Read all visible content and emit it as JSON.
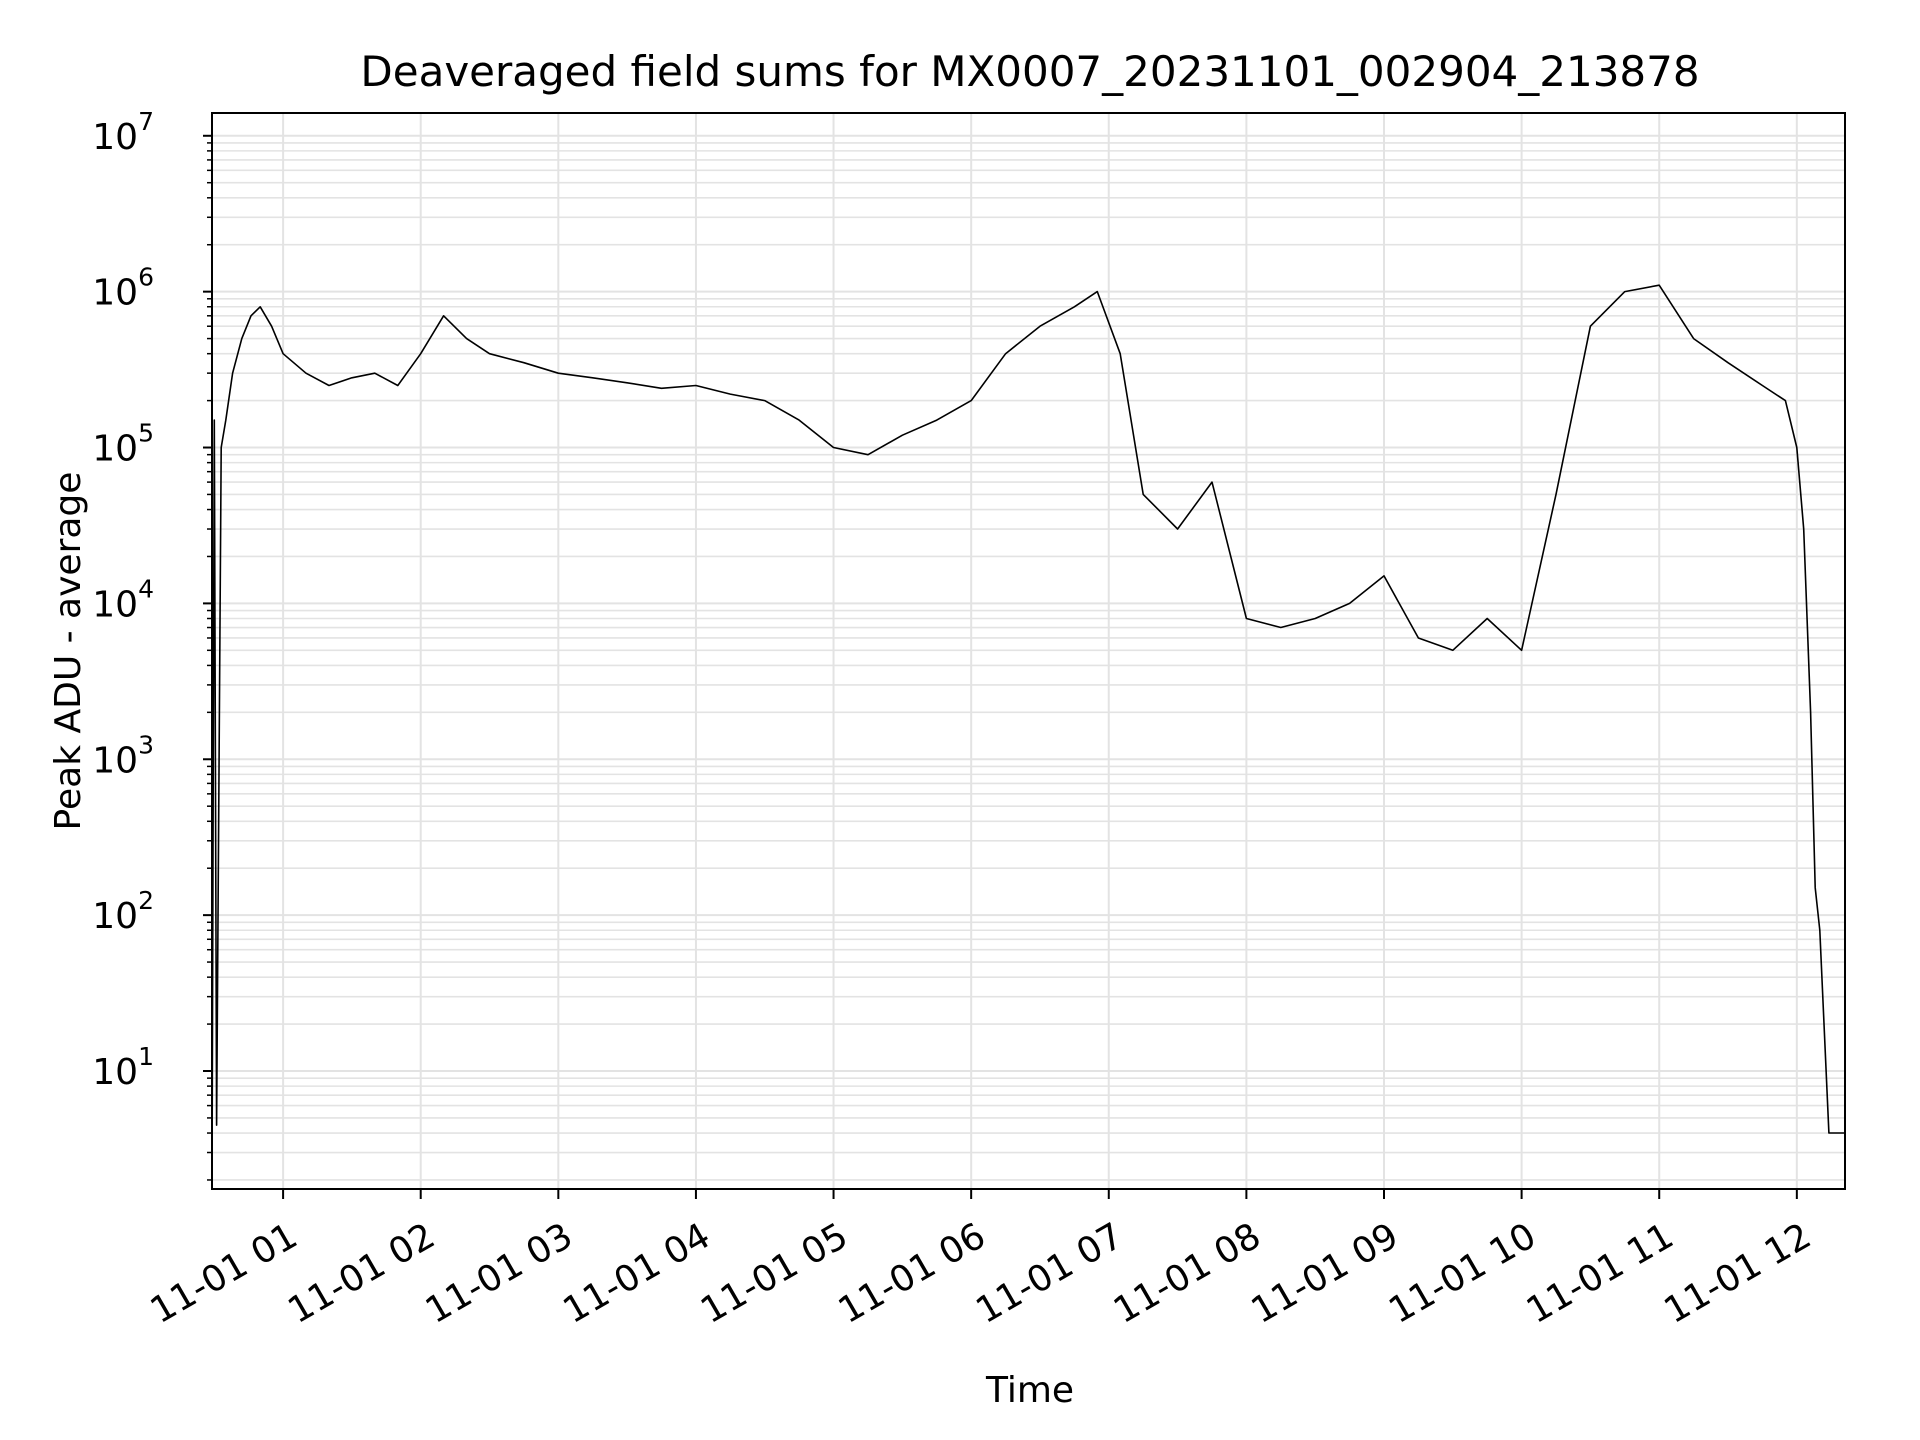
{
  "chart_data": {
    "type": "line",
    "title": "Deaveraged field sums for MX0007_20231101_002904_213878",
    "xlabel": "Time",
    "ylabel": "Peak ADU - average",
    "yscale": "log",
    "ylim": [
      1.75,
      14000000
    ],
    "xlim": [
      "2023-11-01 00:29",
      "2023-11-01 12:21"
    ],
    "grid": true,
    "line_color": "#000000",
    "grid_color": "#e3e3e3",
    "x_ticks": [
      "11-01 01",
      "11-01 02",
      "11-01 03",
      "11-01 04",
      "11-01 05",
      "11-01 06",
      "11-01 07",
      "11-01 08",
      "11-01 09",
      "11-01 10",
      "11-01 11",
      "11-01 12"
    ],
    "y_ticks": [
      {
        "base": "10",
        "exp": "1"
      },
      {
        "base": "10",
        "exp": "2"
      },
      {
        "base": "10",
        "exp": "3"
      },
      {
        "base": "10",
        "exp": "4"
      },
      {
        "base": "10",
        "exp": "5"
      },
      {
        "base": "10",
        "exp": "6"
      },
      {
        "base": "10",
        "exp": "7"
      }
    ],
    "series": [
      {
        "x": [
          "2023-11-01 00:29",
          "2023-11-01 00:30",
          "2023-11-01 00:31",
          "2023-11-01 00:33",
          "2023-11-01 00:35",
          "2023-11-01 00:38",
          "2023-11-01 00:42",
          "2023-11-01 00:46",
          "2023-11-01 00:50",
          "2023-11-01 00:55",
          "2023-11-01 01:00",
          "2023-11-01 01:10",
          "2023-11-01 01:20",
          "2023-11-01 01:30",
          "2023-11-01 01:40",
          "2023-11-01 01:50",
          "2023-11-01 02:00",
          "2023-11-01 02:10",
          "2023-11-01 02:20",
          "2023-11-01 02:30",
          "2023-11-01 02:45",
          "2023-11-01 03:00",
          "2023-11-01 03:15",
          "2023-11-01 03:30",
          "2023-11-01 03:45",
          "2023-11-01 04:00",
          "2023-11-01 04:15",
          "2023-11-01 04:30",
          "2023-11-01 04:45",
          "2023-11-01 05:00",
          "2023-11-01 05:15",
          "2023-11-01 05:30",
          "2023-11-01 05:45",
          "2023-11-01 06:00",
          "2023-11-01 06:15",
          "2023-11-01 06:30",
          "2023-11-01 06:45",
          "2023-11-01 06:55",
          "2023-11-01 07:05",
          "2023-11-01 07:15",
          "2023-11-01 07:30",
          "2023-11-01 07:45",
          "2023-11-01 08:00",
          "2023-11-01 08:15",
          "2023-11-01 08:30",
          "2023-11-01 08:45",
          "2023-11-01 09:00",
          "2023-11-01 09:15",
          "2023-11-01 09:30",
          "2023-11-01 09:45",
          "2023-11-01 10:00",
          "2023-11-01 10:15",
          "2023-11-01 10:30",
          "2023-11-01 10:45",
          "2023-11-01 11:00",
          "2023-11-01 11:15",
          "2023-11-01 11:30",
          "2023-11-01 11:45",
          "2023-11-01 11:55",
          "2023-11-01 12:00",
          "2023-11-01 12:03",
          "2023-11-01 12:06",
          "2023-11-01 12:08",
          "2023-11-01 12:10",
          "2023-11-01 12:14",
          "2023-11-01 12:21"
        ],
        "y": [
          1.8,
          150000,
          4.5,
          100000,
          150000,
          300000,
          500000,
          700000,
          800000,
          600000,
          400000,
          300000,
          250000,
          280000,
          300000,
          250000,
          400000,
          700000,
          500000,
          400000,
          350000,
          300000,
          280000,
          260000,
          240000,
          250000,
          220000,
          200000,
          150000,
          100000,
          90000,
          120000,
          150000,
          200000,
          400000,
          600000,
          800000,
          1000000,
          400000,
          50000,
          30000,
          60000,
          8000,
          7000,
          8000,
          10000,
          15000,
          6000,
          5000,
          8000,
          5000,
          50000,
          600000,
          1000000,
          1100000,
          500000,
          350000,
          250000,
          200000,
          100000,
          30000,
          2000,
          150,
          80,
          4,
          4
        ]
      }
    ]
  }
}
